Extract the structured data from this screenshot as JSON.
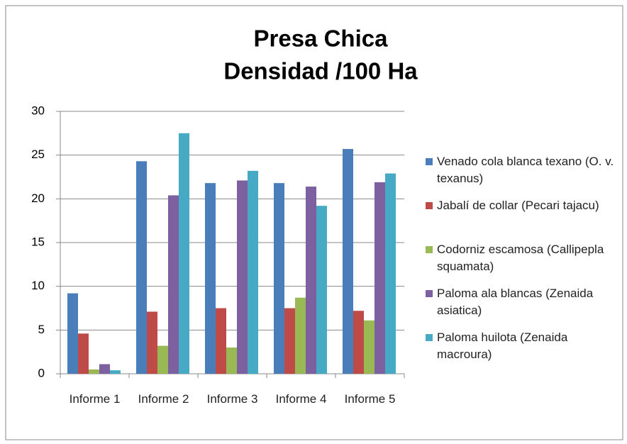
{
  "chart_data": {
    "type": "bar",
    "title": [
      "Presa Chica",
      "Densidad /100 Ha"
    ],
    "categories": [
      "Informe 1",
      "Informe 2",
      "Informe 3",
      "Informe 4",
      "Informe 5"
    ],
    "series": [
      {
        "name": "Venado cola blanca texano (O. v. texanus)",
        "color": "#4a7ebb",
        "values": [
          9.2,
          24.3,
          21.8,
          21.8,
          25.7
        ]
      },
      {
        "name": "Jabalí de collar (Pecari tajacu)",
        "color": "#be4b48",
        "values": [
          4.6,
          7.1,
          7.5,
          7.5,
          7.2
        ]
      },
      {
        "name": "Codorniz escamosa (Callipepla squamata)",
        "color": "#98b954",
        "values": [
          0.5,
          3.2,
          3.0,
          8.7,
          6.1
        ]
      },
      {
        "name": "Paloma ala blancas (Zenaida asiatica)",
        "color": "#7d60a0",
        "values": [
          1.1,
          20.4,
          22.1,
          21.4,
          21.9
        ]
      },
      {
        "name": "Paloma huilota (Zenaida macroura)",
        "color": "#46aac5",
        "values": [
          0.4,
          27.5,
          23.2,
          19.2,
          22.9
        ]
      }
    ],
    "ylim": [
      0,
      30
    ],
    "yticks": [
      0,
      5,
      10,
      15,
      20,
      25,
      30
    ],
    "grid": true,
    "legend": "right"
  }
}
